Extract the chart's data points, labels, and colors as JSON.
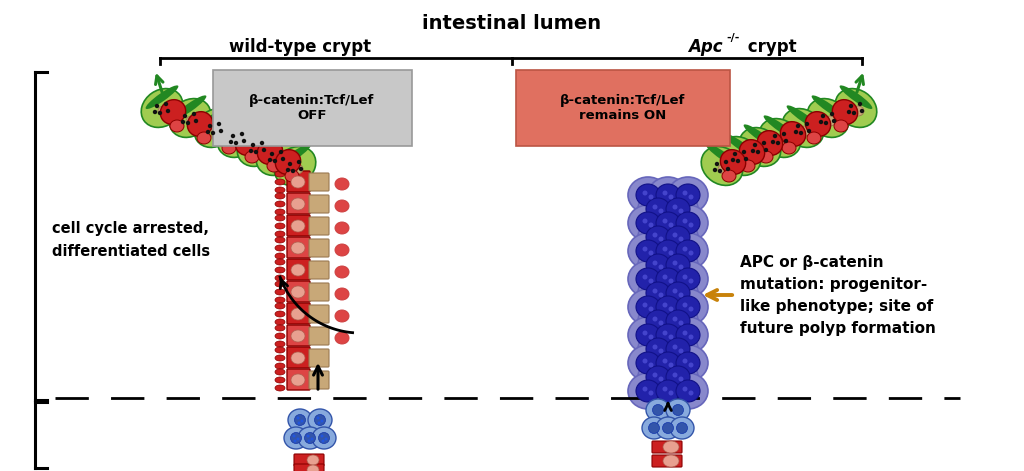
{
  "title": "intestinal lumen",
  "title_fontsize": 13,
  "wt_label": "wild-type crypt",
  "apc_label": "Apc",
  "apc_superscript": "-/-",
  "apc_suffix": " crypt",
  "box1_text": "β-catenin:Tcf/Lef\nOFF",
  "box2_text": "β-catenin:Tcf/Lef\nremains ON",
  "box1_color": "#c8c8c8",
  "box2_color": "#e07060",
  "left_label1": "cell cycle arrested,",
  "left_label2": "differentiated cells",
  "right_label1": "APC or β-catenin",
  "right_label2": "mutation: progenitor-",
  "right_label3": "like phenotype; site of",
  "right_label4": "future polyp formation",
  "gold_arrow_color": "#c8820a",
  "bg_color": "#ffffff",
  "cell_green_light": "#a0cc50",
  "cell_green_dark": "#228822",
  "cell_red_dark": "#cc2020",
  "cell_red_mid": "#dd4444",
  "cell_salmon": "#e8a090",
  "cell_tan": "#c8a878",
  "cell_purple_outer": "#8888cc",
  "cell_purple_mid": "#6666bb",
  "cell_purple_inner": "#2222aa",
  "cell_blue_stem": "#88aadd",
  "cell_blue_dark": "#3355aa"
}
